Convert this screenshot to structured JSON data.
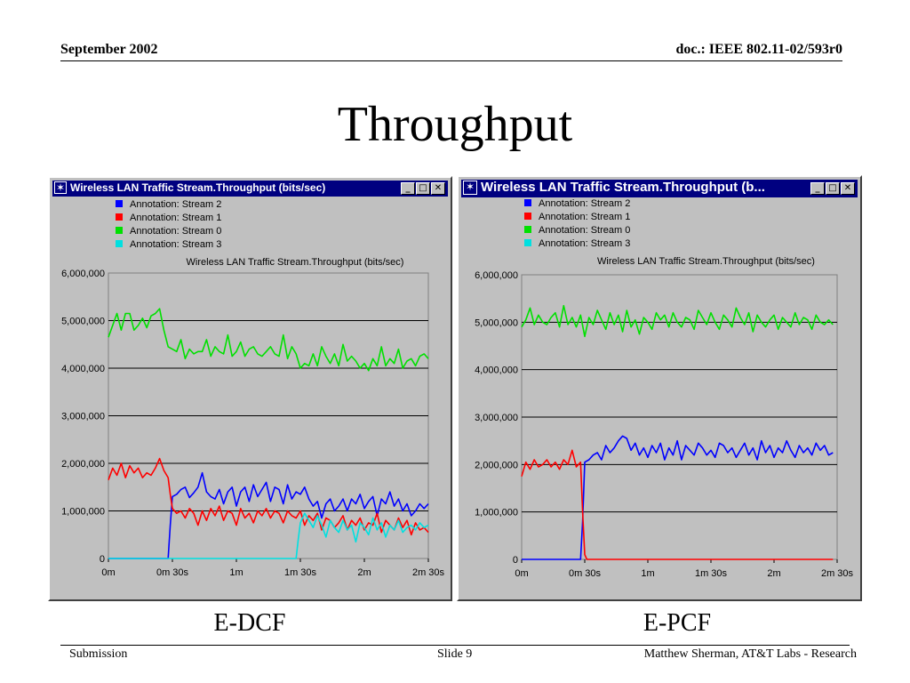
{
  "header": {
    "date": "September 2002",
    "doc": "doc.: IEEE 802.11-02/593r0"
  },
  "slide_title": "Throughput",
  "footer": {
    "left": "Submission",
    "center": "Slide 9",
    "right": "Matthew Sherman, AT&T Labs - Research"
  },
  "windows": [
    {
      "title": "Wireless LAN Traffic Stream.Throughput (bits/sec)",
      "caption": "E-DCF"
    },
    {
      "title": "Wireless LAN Traffic Stream.Throughput (b...",
      "caption": "E-PCF"
    }
  ],
  "window_buttons": {
    "minimize": "_",
    "maximize": "□",
    "close": "✕"
  },
  "chart_data": [
    {
      "type": "line",
      "title": "Wireless LAN Traffic Stream.Throughput (bits/sec)",
      "xlabel": "",
      "ylabel": "",
      "x_ticks": [
        "0m",
        "0m 30s",
        "1m",
        "1m 30s",
        "2m",
        "2m 30s"
      ],
      "y_ticks": [
        "0",
        "1,000,000",
        "2,000,000",
        "3,000,000",
        "4,000,000",
        "5,000,000",
        "6,000,000"
      ],
      "xlim": [
        0,
        150
      ],
      "ylim": [
        0,
        6000000
      ],
      "grid": true,
      "legend": "top-left",
      "series": [
        {
          "name": "Annotation:  Stream 2",
          "color": "#0000ff",
          "x": [
            0,
            28,
            29,
            30,
            32,
            34,
            36,
            38,
            40,
            42,
            44,
            46,
            48,
            50,
            52,
            54,
            56,
            58,
            60,
            62,
            64,
            66,
            68,
            70,
            72,
            74,
            76,
            78,
            80,
            82,
            84,
            86,
            88,
            90,
            92,
            94,
            96,
            98,
            100,
            102,
            104,
            106,
            108,
            110,
            112,
            114,
            116,
            118,
            120,
            122,
            124,
            126,
            128,
            130,
            132,
            134,
            136,
            138,
            140,
            142,
            144,
            146,
            148,
            150
          ],
          "y": [
            0,
            0,
            700000,
            1300000,
            1350000,
            1450000,
            1500000,
            1280000,
            1380000,
            1500000,
            1800000,
            1400000,
            1300000,
            1250000,
            1450000,
            1150000,
            1400000,
            1500000,
            1100000,
            1400000,
            1500000,
            1200000,
            1550000,
            1300000,
            1450000,
            1600000,
            1200000,
            1500000,
            1450000,
            1150000,
            1550000,
            1250000,
            1400000,
            1350000,
            1500000,
            1250000,
            1100000,
            1200000,
            850000,
            1150000,
            1250000,
            1000000,
            1100000,
            1250000,
            1000000,
            1250000,
            1150000,
            1350000,
            1050000,
            1200000,
            1300000,
            900000,
            1250000,
            1150000,
            1400000,
            1100000,
            1250000,
            1000000,
            1150000,
            900000,
            1000000,
            1150000,
            1050000,
            1150000
          ]
        },
        {
          "name": "Annotation:  Stream 1",
          "color": "#ff0000",
          "x": [
            0,
            2,
            4,
            6,
            8,
            10,
            12,
            14,
            16,
            18,
            20,
            22,
            24,
            26,
            28,
            29,
            30,
            32,
            34,
            36,
            38,
            40,
            42,
            44,
            46,
            48,
            50,
            52,
            54,
            56,
            58,
            60,
            62,
            64,
            66,
            68,
            70,
            72,
            74,
            76,
            78,
            80,
            82,
            84,
            86,
            88,
            90,
            92,
            94,
            96,
            98,
            100,
            102,
            104,
            106,
            108,
            110,
            112,
            114,
            116,
            118,
            120,
            122,
            124,
            126,
            128,
            130,
            132,
            134,
            136,
            138,
            140,
            142,
            144,
            146,
            148,
            150
          ],
          "y": [
            1650000,
            1900000,
            1750000,
            2000000,
            1700000,
            1950000,
            1800000,
            1900000,
            1700000,
            1800000,
            1750000,
            1900000,
            2100000,
            1850000,
            1700000,
            1350000,
            1050000,
            950000,
            1000000,
            850000,
            1050000,
            950000,
            700000,
            1000000,
            800000,
            1050000,
            900000,
            1100000,
            800000,
            1000000,
            950000,
            700000,
            1050000,
            850000,
            950000,
            750000,
            1000000,
            900000,
            1050000,
            850000,
            1000000,
            950000,
            750000,
            1000000,
            900000,
            850000,
            1000000,
            700000,
            900000,
            800000,
            950000,
            600000,
            850000,
            800000,
            650000,
            750000,
            900000,
            600000,
            800000,
            700000,
            850000,
            600000,
            750000,
            700000,
            950000,
            550000,
            800000,
            700000,
            600000,
            850000,
            650000,
            800000,
            500000,
            750000,
            600000,
            650000,
            550000
          ]
        },
        {
          "name": "Annotation:  Stream 0",
          "color": "#00e000",
          "x": [
            0,
            2,
            4,
            6,
            8,
            10,
            12,
            14,
            16,
            18,
            20,
            22,
            24,
            26,
            28,
            30,
            32,
            34,
            36,
            38,
            40,
            42,
            44,
            46,
            48,
            50,
            52,
            54,
            56,
            58,
            60,
            62,
            64,
            66,
            68,
            70,
            72,
            74,
            76,
            78,
            80,
            82,
            84,
            86,
            88,
            90,
            92,
            94,
            96,
            98,
            100,
            102,
            104,
            106,
            108,
            110,
            112,
            114,
            116,
            118,
            120,
            122,
            124,
            126,
            128,
            130,
            132,
            134,
            136,
            138,
            140,
            142,
            144,
            146,
            148,
            150
          ],
          "y": [
            4650000,
            4900000,
            5150000,
            4800000,
            5150000,
            5150000,
            4800000,
            4900000,
            5050000,
            4850000,
            5100000,
            5150000,
            5250000,
            4800000,
            4450000,
            4400000,
            4350000,
            4600000,
            4200000,
            4400000,
            4300000,
            4350000,
            4350000,
            4600000,
            4250000,
            4450000,
            4350000,
            4300000,
            4700000,
            4250000,
            4350000,
            4550000,
            4250000,
            4400000,
            4450000,
            4300000,
            4250000,
            4350000,
            4450000,
            4300000,
            4250000,
            4700000,
            4200000,
            4450000,
            4300000,
            4000000,
            4100000,
            4050000,
            4300000,
            4050000,
            4450000,
            4250000,
            4100000,
            4300000,
            4050000,
            4500000,
            4150000,
            4250000,
            4150000,
            4000000,
            4100000,
            3950000,
            4200000,
            4050000,
            4450000,
            4050000,
            4200000,
            4100000,
            4400000,
            4000000,
            4150000,
            4200000,
            4050000,
            4250000,
            4300000,
            4200000
          ]
        },
        {
          "name": "Annotation:  Stream 3",
          "color": "#00e0e0",
          "x": [
            0,
            88,
            89,
            90,
            92,
            94,
            96,
            98,
            100,
            102,
            104,
            106,
            108,
            110,
            112,
            114,
            116,
            118,
            120,
            122,
            124,
            126,
            128,
            130,
            132,
            134,
            136,
            138,
            140,
            142,
            144,
            146,
            148,
            150
          ],
          "y": [
            0,
            0,
            400000,
            750000,
            950000,
            800000,
            650000,
            900000,
            700000,
            450000,
            800000,
            650000,
            550000,
            800000,
            600000,
            700000,
            350000,
            750000,
            650000,
            500000,
            850000,
            600000,
            750000,
            450000,
            700000,
            600000,
            800000,
            550000,
            650000,
            700000,
            600000,
            750000,
            650000,
            700000
          ]
        }
      ]
    },
    {
      "type": "line",
      "title": "Wireless LAN Traffic Stream.Throughput (bits/sec)",
      "xlabel": "",
      "ylabel": "",
      "x_ticks": [
        "0m",
        "0m 30s",
        "1m",
        "1m 30s",
        "2m",
        "2m 30s"
      ],
      "y_ticks": [
        "0",
        "1,000,000",
        "2,000,000",
        "3,000,000",
        "4,000,000",
        "5,000,000",
        "6,000,000"
      ],
      "xlim": [
        0,
        150
      ],
      "ylim": [
        0,
        6000000
      ],
      "grid": true,
      "legend": "top-left",
      "series": [
        {
          "name": "Annotation:  Stream 2",
          "color": "#0000ff",
          "x": [
            0,
            28,
            29,
            30,
            32,
            34,
            36,
            38,
            40,
            42,
            44,
            46,
            48,
            50,
            52,
            54,
            56,
            58,
            60,
            62,
            64,
            66,
            68,
            70,
            72,
            74,
            76,
            78,
            80,
            82,
            84,
            86,
            88,
            90,
            92,
            94,
            96,
            98,
            100,
            102,
            104,
            106,
            108,
            110,
            112,
            114,
            116,
            118,
            120,
            122,
            124,
            126,
            128,
            130,
            132,
            134,
            136,
            138,
            140,
            142,
            144,
            146,
            148
          ],
          "y": [
            0,
            0,
            800000,
            2050000,
            2100000,
            2200000,
            2250000,
            2100000,
            2400000,
            2250000,
            2350000,
            2500000,
            2600000,
            2550000,
            2300000,
            2450000,
            2200000,
            2350000,
            2150000,
            2400000,
            2250000,
            2450000,
            2100000,
            2350000,
            2200000,
            2500000,
            2100000,
            2400000,
            2300000,
            2200000,
            2450000,
            2350000,
            2200000,
            2300000,
            2150000,
            2450000,
            2400000,
            2250000,
            2350000,
            2150000,
            2300000,
            2450000,
            2200000,
            2350000,
            2100000,
            2500000,
            2250000,
            2400000,
            2150000,
            2350000,
            2250000,
            2500000,
            2300000,
            2150000,
            2400000,
            2250000,
            2350000,
            2200000,
            2450000,
            2300000,
            2400000,
            2200000,
            2250000
          ]
        },
        {
          "name": "Annotation:  Stream 1",
          "color": "#ff0000",
          "x": [
            0,
            2,
            4,
            6,
            8,
            10,
            12,
            14,
            16,
            18,
            20,
            22,
            24,
            26,
            28,
            29,
            30,
            31,
            32,
            40,
            60,
            80,
            100,
            120,
            140,
            148
          ],
          "y": [
            1750000,
            2050000,
            1900000,
            2100000,
            1950000,
            2000000,
            2100000,
            1950000,
            2050000,
            1900000,
            2100000,
            2000000,
            2300000,
            1950000,
            2050000,
            1000000,
            100000,
            0,
            0,
            0,
            0,
            0,
            0,
            0,
            0,
            0
          ]
        },
        {
          "name": "Annotation:  Stream 0",
          "color": "#00e000",
          "x": [
            0,
            2,
            4,
            6,
            8,
            10,
            12,
            14,
            16,
            18,
            20,
            22,
            24,
            26,
            28,
            30,
            32,
            34,
            36,
            38,
            40,
            42,
            44,
            46,
            48,
            50,
            52,
            54,
            56,
            58,
            60,
            62,
            64,
            66,
            68,
            70,
            72,
            74,
            76,
            78,
            80,
            82,
            84,
            86,
            88,
            90,
            92,
            94,
            96,
            98,
            100,
            102,
            104,
            106,
            108,
            110,
            112,
            114,
            116,
            118,
            120,
            122,
            124,
            126,
            128,
            130,
            132,
            134,
            136,
            138,
            140,
            142,
            144,
            146,
            148
          ],
          "y": [
            4900000,
            5050000,
            5300000,
            4950000,
            5150000,
            5000000,
            4950000,
            5100000,
            5200000,
            4900000,
            5350000,
            4950000,
            5100000,
            4900000,
            5150000,
            4700000,
            5100000,
            4950000,
            5250000,
            5050000,
            4850000,
            5200000,
            4950000,
            5150000,
            4800000,
            5250000,
            4900000,
            5050000,
            4750000,
            5100000,
            5000000,
            4850000,
            5200000,
            5050000,
            5150000,
            4900000,
            5200000,
            5000000,
            4900000,
            5100000,
            5050000,
            4850000,
            5250000,
            5100000,
            4950000,
            5200000,
            5000000,
            4850000,
            5150000,
            5050000,
            4900000,
            5300000,
            5100000,
            4950000,
            5200000,
            4800000,
            5150000,
            5000000,
            4900000,
            5050000,
            5150000,
            4850000,
            5100000,
            5000000,
            4900000,
            5200000,
            4950000,
            5100000,
            5050000,
            4850000,
            5150000,
            5000000,
            4950000,
            5050000,
            4950000
          ]
        },
        {
          "name": "Annotation:  Stream 3",
          "color": "#00e0e0",
          "x": [],
          "y": []
        }
      ]
    }
  ]
}
